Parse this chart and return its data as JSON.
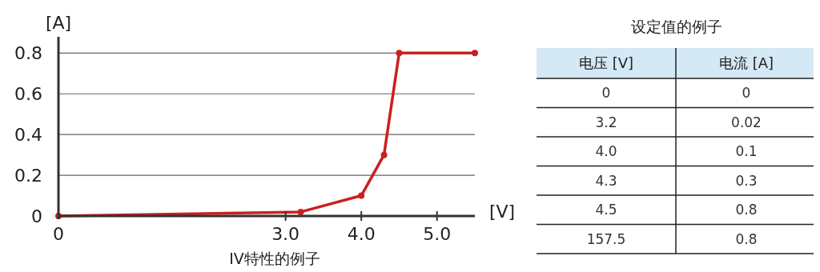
{
  "chart_data": [
    {
      "type": "line",
      "title": "IV特性的例子",
      "xlabel": "[V]",
      "ylabel": "[A]",
      "x": [
        0,
        3.2,
        4.0,
        4.3,
        4.5,
        5.5
      ],
      "series": [
        {
          "color": "#cc1f1f",
          "values": [
            0,
            0.02,
            0.1,
            0.3,
            0.8,
            0.8
          ]
        }
      ],
      "xlim": [
        0,
        5.5
      ],
      "ylim": [
        0,
        0.88
      ],
      "xticks": [
        0,
        {
          "value": 3,
          "label": "3.0"
        },
        {
          "value": 4,
          "label": "4.0"
        },
        {
          "value": 5,
          "label": "5.0"
        }
      ],
      "yticks": [
        0,
        0.2,
        0.4,
        0.6,
        0.8
      ],
      "grid": "y",
      "marker": "circle",
      "line_style": "solid"
    },
    {
      "type": "other",
      "title": "设定值的例子",
      "categories": [
        "电压 [V]",
        "电流 [A]"
      ],
      "annotations": [
        "0",
        "0",
        "3.2",
        "0.02",
        "4.0",
        "0.1",
        "4.3",
        "0.3",
        "4.5",
        "0.8",
        "157.5",
        "0.8"
      ]
    }
  ]
}
